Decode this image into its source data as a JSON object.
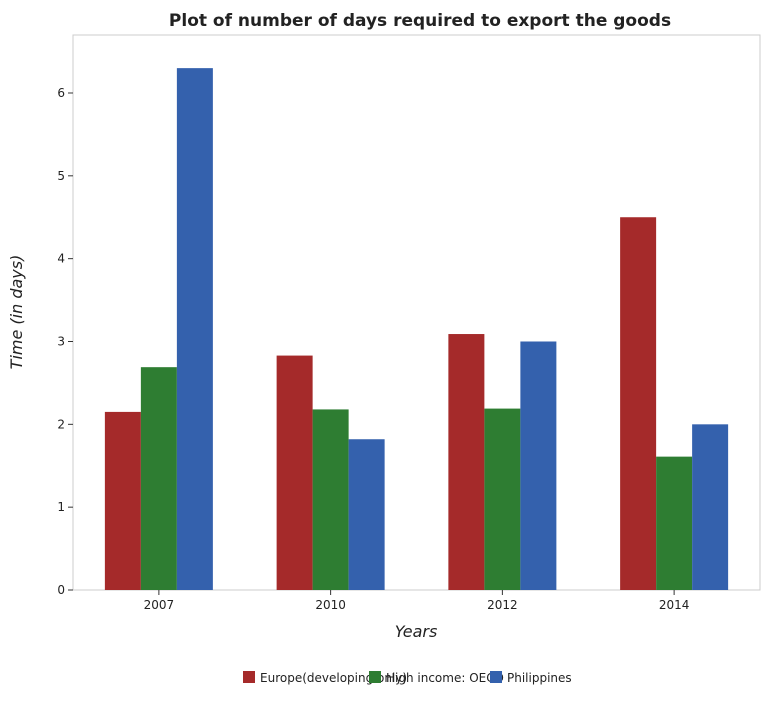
{
  "chart_data": {
    "type": "bar",
    "title": "Plot of number of days required to export the goods",
    "xlabel": "Years",
    "ylabel": "Time (in days)",
    "categories": [
      "2007",
      "2010",
      "2012",
      "2014"
    ],
    "series": [
      {
        "name": "Europe(developing only)",
        "color": "#a52a2a",
        "values": [
          2.15,
          2.83,
          3.09,
          4.5
        ]
      },
      {
        "name": "High income: OECD",
        "color": "#2e7d32",
        "values": [
          2.69,
          2.18,
          2.19,
          1.61
        ]
      },
      {
        "name": "Philippines",
        "color": "#3461ad",
        "values": [
          6.3,
          1.82,
          3.0,
          2.0
        ]
      }
    ],
    "ylim": [
      0,
      6.7
    ],
    "yticks": [
      "0",
      "1",
      "2",
      "3",
      "4",
      "5",
      "6"
    ],
    "grid": false,
    "legend_position": "bottom"
  }
}
